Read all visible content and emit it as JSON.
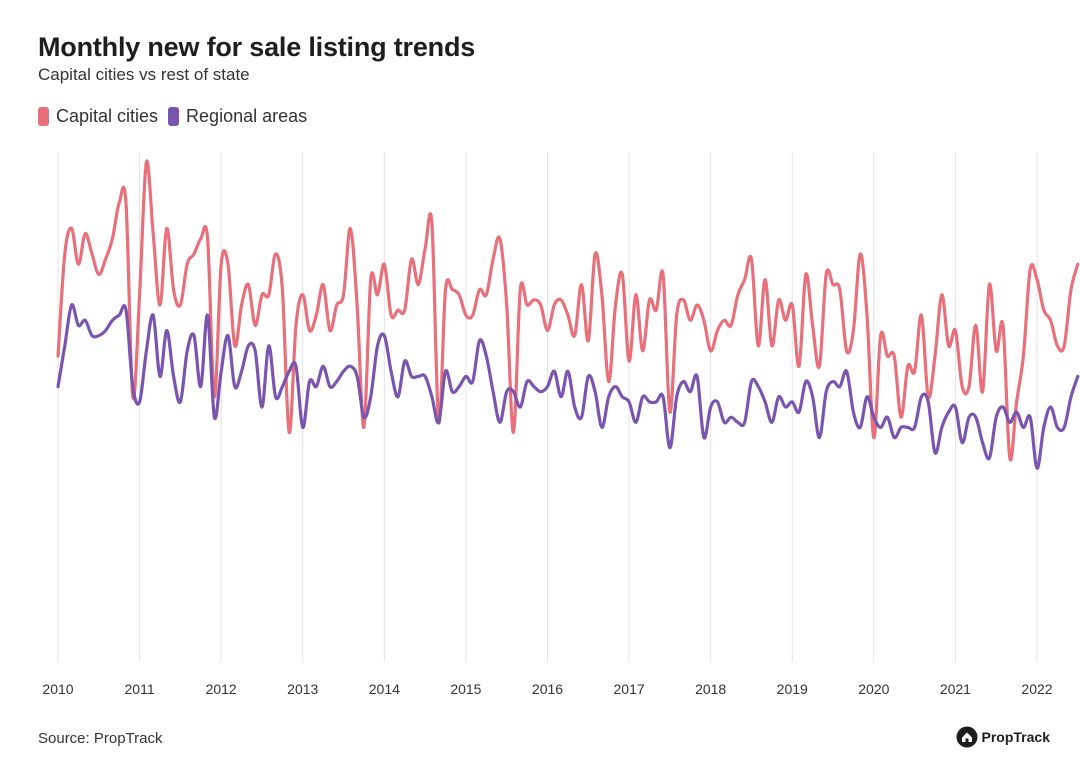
{
  "header": {
    "title": "Monthly new for sale listing trends",
    "subtitle": "Capital cities vs rest of state"
  },
  "legend": {
    "items": [
      {
        "label": "Capital cities",
        "color": "#e8707a"
      },
      {
        "label": "Regional areas",
        "color": "#7a55b0"
      }
    ]
  },
  "footer": {
    "source": "Source: PropTrack",
    "brand": "PropTrack"
  },
  "chart_data": {
    "type": "line",
    "x_axis": {
      "start_year": 2010,
      "end_year": 2022,
      "tick_labels": [
        "2010",
        "2011",
        "2012",
        "2013",
        "2014",
        "2015",
        "2016",
        "2017",
        "2018",
        "2019",
        "2020",
        "2021",
        "2022"
      ]
    },
    "y_axis": {
      "labels": "none",
      "ylim": [
        0,
        100
      ]
    },
    "grid": "vertical",
    "legend_position": "top-left",
    "series": [
      {
        "name": "Capital cities",
        "color": "#e8707a",
        "values": [
          60,
          80,
          85,
          78,
          84,
          80,
          76,
          79,
          83,
          90,
          90,
          52,
          72,
          98,
          84,
          70,
          85,
          73,
          70,
          78,
          80,
          83,
          83,
          52,
          78,
          78,
          62,
          70,
          74,
          66,
          72,
          72,
          80,
          73,
          45,
          66,
          72,
          65,
          68,
          74,
          65,
          70,
          72,
          85,
          70,
          46,
          75,
          72,
          78,
          68,
          69,
          69,
          79,
          74,
          81,
          86,
          47,
          73,
          73,
          72,
          68,
          68,
          73,
          72,
          79,
          83,
          70,
          45,
          73,
          70,
          71,
          70,
          65,
          70,
          71,
          68,
          64,
          74,
          63,
          80,
          72,
          55,
          70,
          76,
          59,
          72,
          61,
          71,
          69,
          76,
          49,
          68,
          71,
          67,
          70,
          67,
          61,
          65,
          67,
          66,
          72,
          75,
          79,
          62,
          75,
          62,
          71,
          67,
          70,
          58,
          76,
          66,
          58,
          76,
          74,
          73,
          61,
          65,
          80,
          68,
          44,
          64,
          60,
          60,
          48,
          58,
          57,
          68,
          52,
          60,
          72,
          62,
          65,
          54,
          54,
          66,
          53,
          74,
          61,
          66,
          40,
          51,
          60,
          77,
          75,
          69,
          67,
          62,
          62,
          73,
          78
        ],
        "_note_removed": true
      },
      {
        "name": "Regional areas",
        "color": "#7a55b0",
        "values": [
          54,
          62,
          70,
          66,
          67,
          64,
          64,
          65,
          67,
          68,
          69,
          54,
          51,
          61,
          68,
          56,
          65,
          56,
          51,
          61,
          64,
          54,
          68,
          48,
          57,
          64,
          54,
          57,
          62,
          61,
          50,
          62,
          52,
          54,
          57,
          58,
          46,
          55,
          54,
          58,
          54,
          55,
          57,
          58,
          56,
          48,
          52,
          62,
          64,
          57,
          52,
          59,
          56,
          56,
          56,
          52,
          47,
          57,
          53,
          54,
          56,
          55,
          63,
          60,
          53,
          47,
          53,
          53,
          50,
          55,
          54,
          53,
          54,
          57,
          52,
          57,
          50,
          48,
          56,
          53,
          46,
          52,
          54,
          52,
          51,
          47,
          52,
          51,
          51,
          52,
          42,
          52,
          55,
          53,
          56,
          44,
          50,
          51,
          47,
          48,
          47,
          47,
          55,
          54,
          51,
          47,
          52,
          50,
          51,
          49,
          55,
          52,
          44,
          53,
          55,
          54,
          57,
          49,
          46,
          52,
          48,
          46,
          48,
          44,
          46,
          46,
          46,
          52,
          51,
          41,
          46,
          49,
          50,
          43,
          48,
          48,
          43,
          40,
          48,
          50,
          47,
          49,
          46,
          48,
          38,
          46,
          50,
          46,
          46,
          52,
          56
        ]
      }
    ]
  }
}
